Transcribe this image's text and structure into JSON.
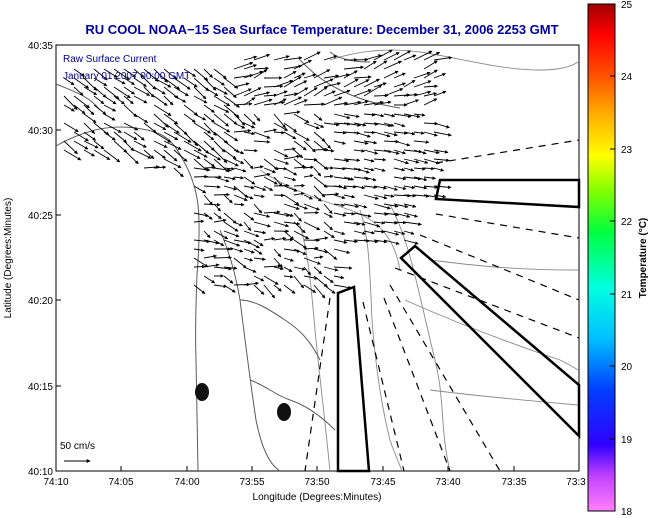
{
  "title": "RU COOL  NOAA−15  Sea Surface Temperature:  December 31, 2006 2253 GMT",
  "overlay": {
    "line1": "Raw Surface Current",
    "line2": "January 01 2007 00:00 GMT"
  },
  "axes": {
    "xlabel": "Longitude (Degrees:Minutes)",
    "ylabel": "Latitude (Degrees:Minutes)",
    "x_ticks": [
      "74:10",
      "74:05",
      "74:00",
      "73:55",
      "73:50",
      "73:45",
      "73:40",
      "73:35",
      "73:3"
    ],
    "y_ticks": [
      "40:35",
      "40:30",
      "40:25",
      "40:20",
      "40:15",
      "40:10"
    ]
  },
  "scale": {
    "label": "50 cm/s"
  },
  "colorbar": {
    "label": "Temperature (°C)",
    "ticks": [
      "25",
      "24",
      "23",
      "22",
      "21",
      "20",
      "19",
      "18"
    ],
    "min": 18,
    "max": 25
  },
  "colors": {
    "title": "#0000a0",
    "overlay_text": "#000090",
    "land_contour": "#6a6a6a",
    "arrows": "#000000"
  }
}
